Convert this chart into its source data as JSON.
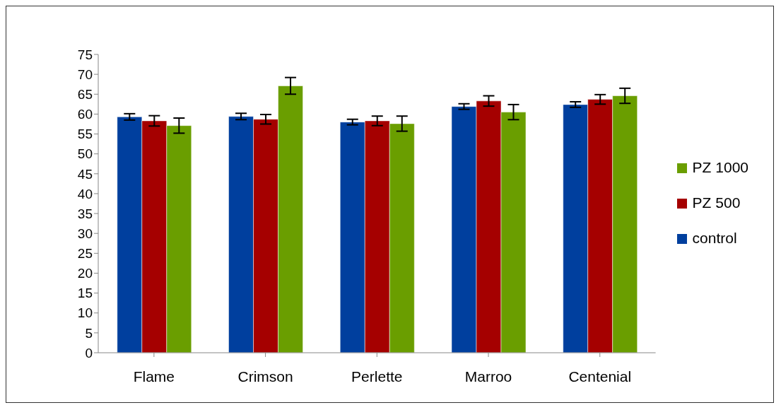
{
  "chart_data": {
    "type": "bar",
    "categories": [
      "Flame",
      "Crimson",
      "Perlette",
      "Marroo",
      "Centenial"
    ],
    "series": [
      {
        "name": "control",
        "color": "#003f9e",
        "values": [
          59.3,
          59.4,
          58.0,
          61.9,
          62.4
        ],
        "errors": [
          0.8,
          0.8,
          0.7,
          0.7,
          0.7
        ]
      },
      {
        "name": "PZ 500",
        "color": "#a50000",
        "values": [
          58.3,
          58.7,
          58.3,
          63.3,
          63.7
        ],
        "errors": [
          1.3,
          1.2,
          1.2,
          1.3,
          1.2
        ]
      },
      {
        "name": "PZ 1000",
        "color": "#6a9e00",
        "values": [
          57.1,
          67.1,
          57.6,
          60.5,
          64.6
        ],
        "errors": [
          1.9,
          2.1,
          1.9,
          1.9,
          1.9
        ]
      }
    ],
    "ylim": [
      0,
      75
    ],
    "yticks": [
      0,
      5,
      10,
      15,
      20,
      25,
      30,
      35,
      40,
      45,
      50,
      55,
      60,
      65,
      70,
      75
    ],
    "grid": false,
    "legend": "right"
  }
}
